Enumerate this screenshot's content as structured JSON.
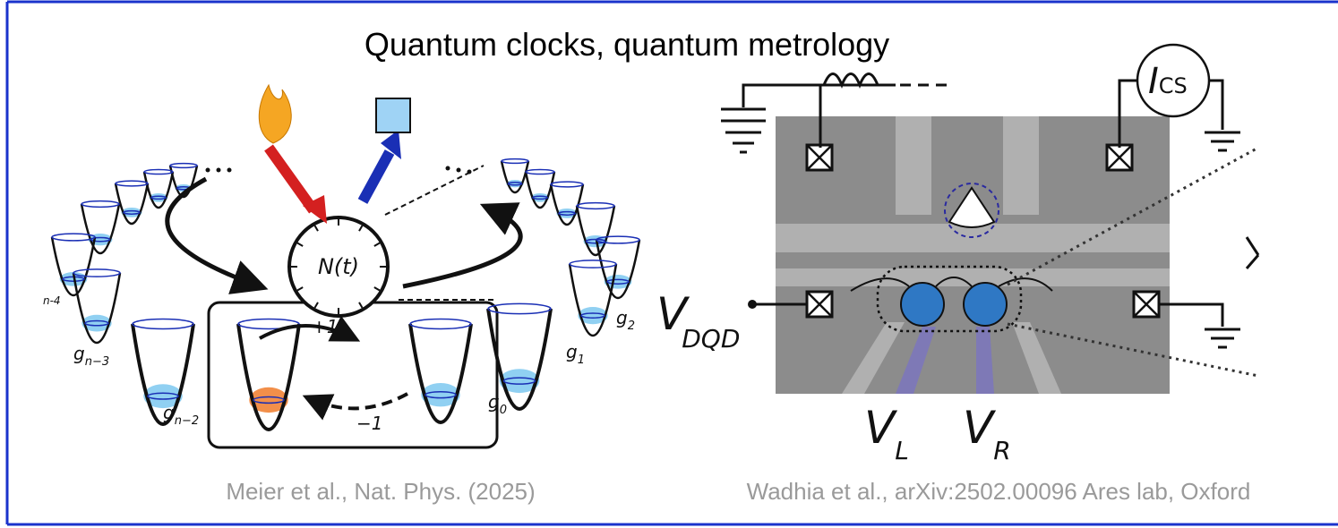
{
  "title": "Quantum clocks, quantum metrology",
  "left_figure": {
    "clock_label": "N(t)",
    "forward_label": "+1",
    "backward_label": "−1",
    "chain_label": "n-4",
    "well_labels": [
      {
        "main": "g",
        "sub": "n−3"
      },
      {
        "main": "g",
        "sub": "n−2"
      },
      {
        "main": "g",
        "sub": "0"
      },
      {
        "main": "g",
        "sub": "1"
      },
      {
        "main": "g",
        "sub": "2"
      }
    ],
    "caption": "Meier et al., Nat. Phys. (2025)"
  },
  "right_figure": {
    "current_source": {
      "main": "I",
      "sub": "CS"
    },
    "gate_labels": [
      {
        "main": "V",
        "sub": "DQD"
      },
      {
        "main": "V",
        "sub": "L"
      },
      {
        "main": "V",
        "sub": "R"
      }
    ],
    "caption": "Wadhia et al., arXiv:2502.00096 Ares lab, Oxford"
  }
}
